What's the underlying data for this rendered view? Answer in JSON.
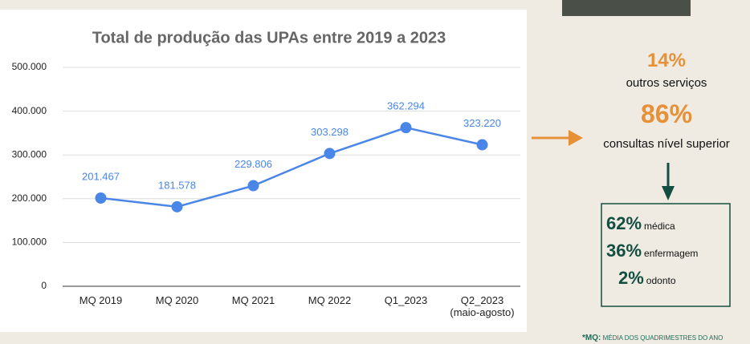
{
  "chart_data": {
    "type": "line",
    "title": "Total de produção das UPAs entre 2019 a 2023",
    "categories": [
      "MQ 2019",
      "MQ 2020",
      "MQ 2021",
      "MQ 2022",
      "Q1_2023",
      "Q2_2023\n(maio-agosto)"
    ],
    "values": [
      201467,
      181578,
      229806,
      303298,
      362294,
      323220
    ],
    "value_labels": [
      "201.467",
      "181.578",
      "229.806",
      "303.298",
      "362.294",
      "323.220"
    ],
    "color": "#4a86e8",
    "ylim": [
      0,
      500000
    ],
    "yticks": [
      0,
      {
        "value": 100000,
        "label": "100.000"
      },
      {
        "value": 200000,
        "label": "200.000"
      },
      {
        "value": 300000,
        "label": "300.000"
      },
      {
        "value": 400000,
        "label": "400.000"
      },
      {
        "value": 500000,
        "label": "500.000"
      }
    ],
    "grid": true
  },
  "sidebar": {
    "share_other": "14%",
    "share_other_label": "outros serviços",
    "share_consult": "86%",
    "share_consult_label": "consultas nível superior",
    "breakdown": [
      {
        "value": "62%",
        "label": "médica"
      },
      {
        "value": "36%",
        "label": "enfermagem"
      },
      {
        "value": "2%",
        "label": "odonto"
      }
    ]
  },
  "footnote": {
    "key": "*MQ:",
    "text": "MÉDIA DOS QUADRIMESTRES DO ANO"
  }
}
